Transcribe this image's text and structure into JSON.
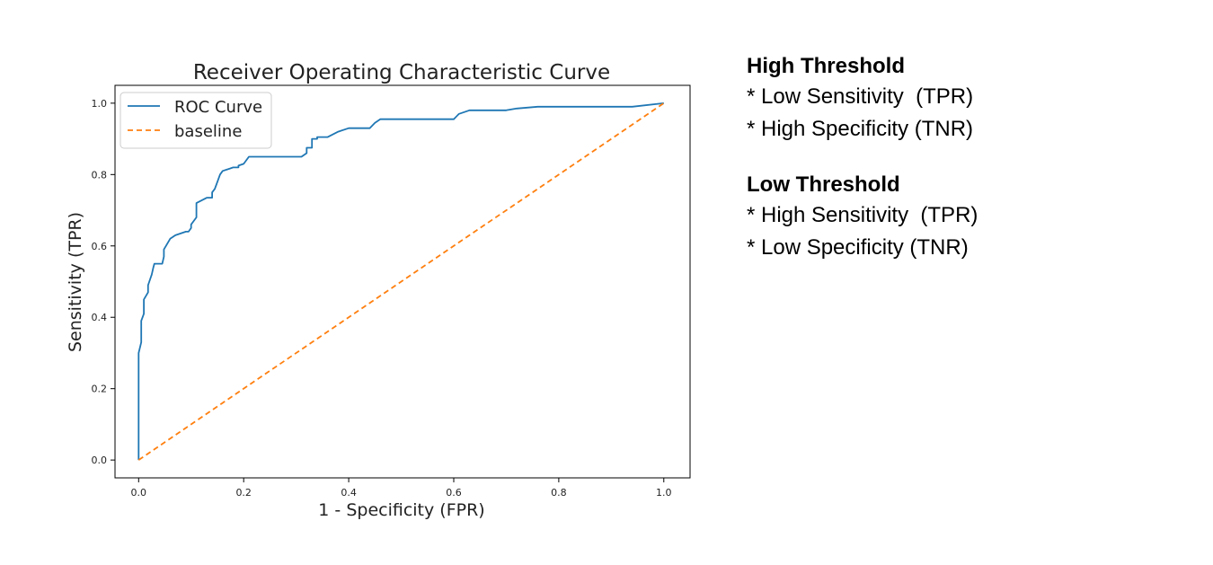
{
  "chart_data": {
    "type": "line",
    "title": "Receiver Operating Characteristic Curve",
    "xlabel": "1 - Specificity (FPR)",
    "ylabel": "Sensitivity (TPR)",
    "xlim": [
      -0.045,
      1.05
    ],
    "ylim": [
      -0.05,
      1.05
    ],
    "xticks": [
      0.0,
      0.2,
      0.4,
      0.6,
      0.8,
      1.0
    ],
    "yticks": [
      0.0,
      0.2,
      0.4,
      0.6,
      0.8,
      1.0
    ],
    "xtick_labels": [
      "0.0",
      "0.2",
      "0.4",
      "0.6",
      "0.8",
      "1.0"
    ],
    "ytick_labels": [
      "0.0",
      "0.2",
      "0.4",
      "0.6",
      "0.8",
      "1.0"
    ],
    "grid": false,
    "legend_position": "top-left",
    "series": [
      {
        "name": "ROC Curve",
        "color": "#1f77b4",
        "dash": "solid",
        "x": [
          0.0,
          0.0,
          0.005,
          0.005,
          0.01,
          0.01,
          0.018,
          0.018,
          0.025,
          0.028,
          0.03,
          0.035,
          0.04,
          0.045,
          0.048,
          0.048,
          0.052,
          0.06,
          0.07,
          0.09,
          0.095,
          0.1,
          0.1,
          0.11,
          0.11,
          0.13,
          0.13,
          0.14,
          0.14,
          0.145,
          0.15,
          0.155,
          0.16,
          0.17,
          0.18,
          0.19,
          0.19,
          0.2,
          0.21,
          0.22,
          0.31,
          0.32,
          0.32,
          0.325,
          0.33,
          0.33,
          0.34,
          0.34,
          0.36,
          0.38,
          0.4,
          0.41,
          0.44,
          0.45,
          0.46,
          0.47,
          0.6,
          0.61,
          0.63,
          0.7,
          0.72,
          0.76,
          0.78,
          0.94,
          1.0
        ],
        "y": [
          0.0,
          0.3,
          0.33,
          0.39,
          0.41,
          0.45,
          0.47,
          0.49,
          0.52,
          0.54,
          0.55,
          0.55,
          0.55,
          0.55,
          0.57,
          0.59,
          0.6,
          0.62,
          0.63,
          0.64,
          0.64,
          0.65,
          0.66,
          0.68,
          0.72,
          0.735,
          0.735,
          0.735,
          0.75,
          0.76,
          0.78,
          0.8,
          0.81,
          0.815,
          0.82,
          0.82,
          0.825,
          0.83,
          0.85,
          0.85,
          0.85,
          0.86,
          0.875,
          0.875,
          0.875,
          0.9,
          0.9,
          0.905,
          0.905,
          0.92,
          0.93,
          0.93,
          0.93,
          0.945,
          0.955,
          0.955,
          0.955,
          0.97,
          0.98,
          0.98,
          0.985,
          0.99,
          0.99,
          0.99,
          1.0
        ]
      },
      {
        "name": "baseline",
        "color": "#ff7f0e",
        "dash": "dashed",
        "x": [
          0.0,
          1.0
        ],
        "y": [
          0.0,
          1.0
        ]
      }
    ]
  },
  "notes": [
    {
      "heading": "High Threshold",
      "lines": [
        "* Low Sensitivity  (TPR)",
        "* High Specificity (TNR)"
      ]
    },
    {
      "heading": "Low Threshold",
      "lines": [
        "* High Sensitivity  (TPR)",
        "* Low Specificity (TNR)"
      ]
    }
  ]
}
